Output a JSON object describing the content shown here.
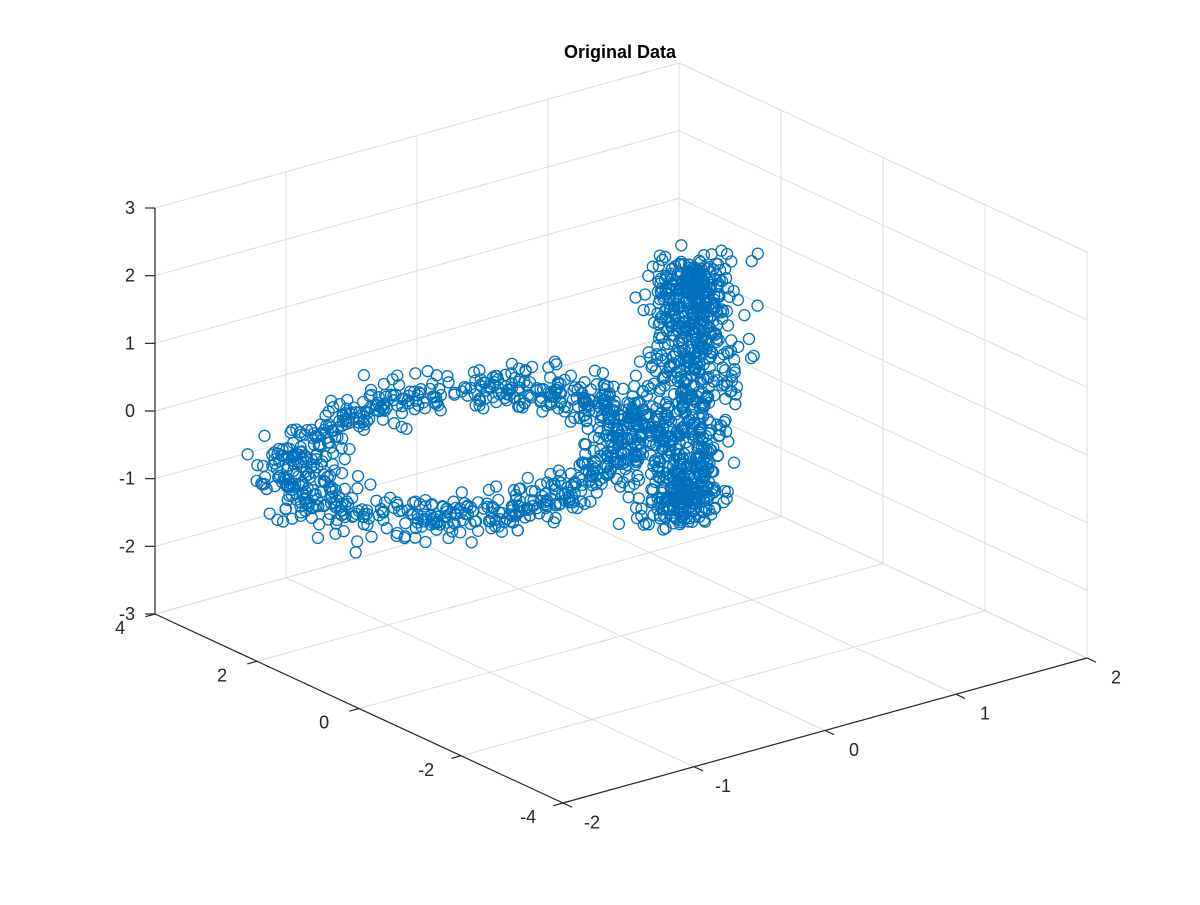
{
  "chart_data": {
    "type": "scatter",
    "projection": "3d",
    "title": "Original Data",
    "xlabel": "",
    "ylabel": "",
    "zlabel": "",
    "xlim": [
      -2,
      2
    ],
    "ylim": [
      -4,
      4
    ],
    "zlim": [
      -3,
      3
    ],
    "xticks": [
      -2,
      -1,
      0,
      1,
      2
    ],
    "xtick_labels": [
      "-2",
      "-1",
      "0",
      "1",
      "2"
    ],
    "yticks": [
      -4,
      -2,
      0,
      2,
      4
    ],
    "ytick_labels": [
      "-4",
      "-2",
      "0",
      "2",
      "4"
    ],
    "zticks": [
      -3,
      -2,
      -1,
      0,
      1,
      2,
      3
    ],
    "ztick_labels": [
      "-3",
      "-2",
      "-1",
      "0",
      "1",
      "2",
      "3"
    ],
    "grid": true,
    "marker": "o",
    "color": "#0072BD",
    "series": [
      {
        "shape": "ring",
        "plane": "horizontal",
        "center": [
          -0.9,
          0.8,
          -0.1
        ],
        "radius": 1.1,
        "axis_scale": [
          1.0,
          1.5,
          0.25
        ],
        "noise": 0.14,
        "points": 900
      },
      {
        "shape": "ring",
        "plane": "vertical",
        "center": [
          0.35,
          -0.4,
          0.55
        ],
        "radius": 1.0,
        "axis_scale": [
          1.0,
          1.15,
          1.6
        ],
        "noise": 0.14,
        "points": 900
      }
    ]
  }
}
